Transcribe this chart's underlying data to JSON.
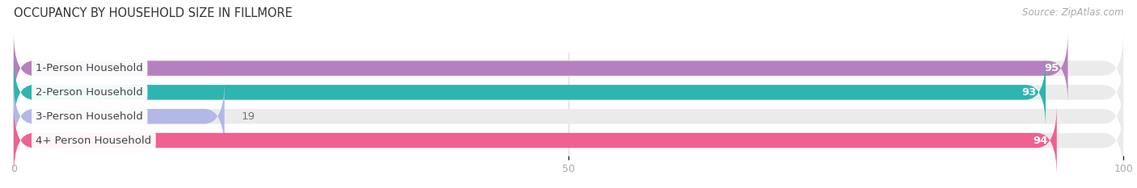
{
  "title": "OCCUPANCY BY HOUSEHOLD SIZE IN FILLMORE",
  "source": "Source: ZipAtlas.com",
  "categories": [
    "1-Person Household",
    "2-Person Household",
    "3-Person Household",
    "4+ Person Household"
  ],
  "values": [
    95,
    93,
    19,
    94
  ],
  "bar_colors": [
    "#b580bf",
    "#2db5b0",
    "#b3b8e8",
    "#f06090"
  ],
  "bar_bg_color": "#ebebeb",
  "xlim": [
    0,
    100
  ],
  "xticks": [
    0,
    50,
    100
  ],
  "title_fontsize": 10.5,
  "source_fontsize": 8.5,
  "label_fontsize": 9.5,
  "value_fontsize": 9.5,
  "background_color": "#ffffff",
  "bar_height": 0.62,
  "label_bg_color": "#ffffff"
}
